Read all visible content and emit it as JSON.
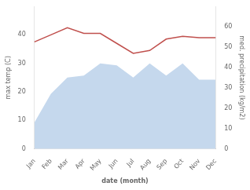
{
  "chart_data": {
    "type": "line",
    "xlabel": "date (month)",
    "ylabel": "max temp (C)",
    "y2label": "med. precipitation (kg/m2)",
    "categories": [
      "Jan",
      "Feb",
      "Mar",
      "Apr",
      "May",
      "Jun",
      "Jul",
      "Aug",
      "Sep",
      "Oct",
      "Nov",
      "Dec"
    ],
    "series": [
      {
        "type": "area",
        "color": "#c5d8ed",
        "axis": "y2",
        "values": [
          13,
          27,
          35,
          36,
          42,
          41,
          35,
          42,
          36,
          42,
          34,
          34
        ]
      },
      {
        "type": "line",
        "color": "#c0504d",
        "values": [
          37.5,
          40.0,
          42.5,
          40.5,
          40.5,
          37.0,
          33.5,
          34.5,
          38.5,
          39.5,
          39.0,
          39.0
        ]
      }
    ],
    "ylim": [
      0,
      50
    ],
    "yticks": [
      0,
      10,
      20,
      30,
      40
    ],
    "y2lim": [
      0,
      70
    ],
    "y2ticks": [
      0,
      10,
      20,
      30,
      40,
      50,
      60
    ],
    "grid": false
  }
}
